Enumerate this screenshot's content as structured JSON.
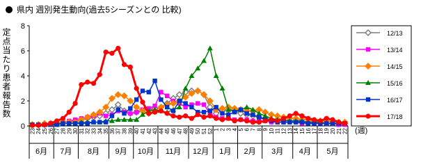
{
  "chart_data": {
    "type": "line",
    "title": "県内 週別発生動向(過去5シーズンとの 比較)",
    "ylabel": "定点当たり患者報告数",
    "xlabel": "(週)",
    "categories": [
      "23",
      "24",
      "25",
      "26",
      "27",
      "28",
      "29",
      "30",
      "31",
      "32",
      "33",
      "34",
      "35",
      "36",
      "37",
      "38",
      "39",
      "40",
      "41",
      "42",
      "43",
      "44",
      "45",
      "46",
      "47",
      "48",
      "49",
      "50",
      "51",
      "52",
      "1",
      "2",
      "3",
      "4",
      "5",
      "6",
      "7",
      "8",
      "9",
      "10",
      "11",
      "12",
      "13",
      "14",
      "15",
      "16",
      "17",
      "18",
      "19",
      "20",
      "21",
      "22"
    ],
    "months": [
      "6月",
      null,
      null,
      null,
      "7月",
      null,
      null,
      null,
      "8月",
      null,
      null,
      null,
      null,
      "9月",
      null,
      null,
      null,
      "10月",
      null,
      null,
      null,
      "11月",
      null,
      null,
      null,
      null,
      "12月",
      null,
      null,
      null,
      "1月",
      null,
      null,
      null,
      "2月",
      null,
      null,
      null,
      "3月",
      null,
      null,
      null,
      null,
      "4月",
      null,
      null,
      null,
      "5月",
      null,
      null,
      null,
      null
    ],
    "ylim": [
      0,
      8
    ],
    "yticks": [
      0,
      2,
      4,
      6,
      8
    ],
    "grid": false,
    "series": [
      {
        "name": "12/13",
        "color": "#7f7f7f",
        "marker": "diamond",
        "line_width": 1.5,
        "values": [
          0.1,
          0.1,
          0.1,
          0.2,
          0.2,
          0.3,
          0.3,
          0.4,
          0.5,
          0.6,
          0.7,
          0.8,
          1.0,
          1.3,
          1.7,
          1.2,
          1.0,
          1.1,
          1.2,
          1.3,
          1.4,
          1.5,
          1.8,
          2.2,
          2.5,
          2.7,
          2.8,
          2.8,
          2.5,
          1.5,
          1.0,
          1.2,
          1.3,
          1.2,
          1.0,
          0.9,
          0.8,
          0.7,
          0.6,
          0.5,
          0.5,
          0.4,
          0.4,
          0.4,
          0.3,
          0.3,
          0.3,
          0.3,
          0.2,
          0.2,
          0.2,
          0.2
        ]
      },
      {
        "name": "13/14",
        "color": "#ff00ff",
        "marker": "square",
        "line_width": 1.5,
        "values": [
          0.1,
          0.1,
          0.1,
          0.2,
          0.2,
          0.3,
          0.4,
          0.5,
          0.6,
          0.7,
          0.8,
          1.0,
          0.8,
          0.9,
          1.2,
          1.1,
          1.0,
          1.1,
          1.3,
          1.4,
          1.6,
          2.7,
          2.4,
          2.0,
          1.8,
          1.5,
          1.7,
          1.8,
          1.7,
          1.0,
          0.7,
          0.6,
          0.6,
          0.5,
          0.5,
          0.5,
          0.4,
          0.4,
          0.4,
          0.3,
          0.3,
          0.3,
          0.3,
          0.3,
          0.2,
          0.2,
          0.2,
          0.2,
          0.2,
          0.2,
          0.1,
          0.1
        ]
      },
      {
        "name": "14/15",
        "color": "#ff8000",
        "marker": "diamond",
        "line_width": 1.5,
        "values": [
          0.1,
          0.1,
          0.2,
          0.2,
          0.2,
          0.3,
          0.3,
          0.3,
          0.5,
          0.7,
          0.9,
          1.1,
          1.5,
          2.2,
          2.5,
          2.4,
          2.0,
          1.5,
          1.2,
          1.0,
          1.2,
          1.5,
          1.7,
          1.8,
          2.0,
          2.3,
          2.6,
          2.8,
          2.5,
          2.0,
          1.3,
          1.4,
          1.5,
          1.4,
          1.3,
          1.2,
          1.2,
          1.3,
          1.1,
          0.9,
          0.8,
          0.7,
          0.6,
          0.6,
          0.5,
          0.5,
          0.4,
          0.4,
          0.4,
          0.3,
          0.3,
          0.3
        ]
      },
      {
        "name": "15/16",
        "color": "#008000",
        "marker": "triangle",
        "line_width": 1.5,
        "values": [
          0.1,
          0.1,
          0.1,
          0.1,
          0.2,
          0.2,
          0.2,
          0.2,
          0.3,
          0.3,
          0.3,
          0.3,
          0.4,
          0.4,
          0.5,
          0.5,
          0.5,
          0.5,
          0.9,
          1.2,
          1.3,
          1.2,
          1.1,
          1.3,
          1.5,
          3.0,
          4.0,
          4.6,
          5.2,
          6.2,
          4.0,
          3.0,
          1.3,
          1.2,
          1.3,
          1.5,
          1.3,
          1.0,
          0.8,
          0.6,
          0.5,
          0.5,
          0.4,
          0.4,
          0.4,
          0.3,
          0.3,
          0.3,
          0.2,
          0.2,
          0.2,
          0.2
        ]
      },
      {
        "name": "16/17",
        "color": "#0033cc",
        "marker": "square",
        "line_width": 1.5,
        "values": [
          0.1,
          0.1,
          0.1,
          0.1,
          0.1,
          0.2,
          0.2,
          0.2,
          0.2,
          0.2,
          0.3,
          0.3,
          0.3,
          0.8,
          1.3,
          1.0,
          1.4,
          2.1,
          2.8,
          2.7,
          3.6,
          2.1,
          1.5,
          1.2,
          2.0,
          1.8,
          1.5,
          1.1,
          1.1,
          1.2,
          1.5,
          1.0,
          0.9,
          1.1,
          1.3,
          1.0,
          0.9,
          0.7,
          0.5,
          0.4,
          0.3,
          0.3,
          0.3,
          0.3,
          0.3,
          0.2,
          0.2,
          0.2,
          0.2,
          0.2,
          0.2,
          0.2
        ]
      },
      {
        "name": "17/18",
        "color": "#ff0000",
        "marker": "circle",
        "line_width": 3,
        "values": [
          0.05,
          0.05,
          0.1,
          0.2,
          0.4,
          0.6,
          1.1,
          1.8,
          3.3,
          3.5,
          3.4,
          4.1,
          5.9,
          5.8,
          6.2,
          4.9,
          4.7,
          3.0,
          1.9,
          1.0,
          1.1,
          1.2,
          1.0,
          0.8,
          0.7,
          0.8,
          0.6,
          0.9,
          0.7,
          0.8,
          0.6,
          0.5,
          0.6,
          0.4,
          0.5,
          0.4,
          0.3,
          0.3,
          0.4,
          0.5,
          0.4,
          0.6,
          0.8,
          1.0,
          0.8,
          0.6,
          0.5,
          0.4,
          0.6,
          0.5,
          0.3,
          0.2
        ]
      }
    ]
  }
}
